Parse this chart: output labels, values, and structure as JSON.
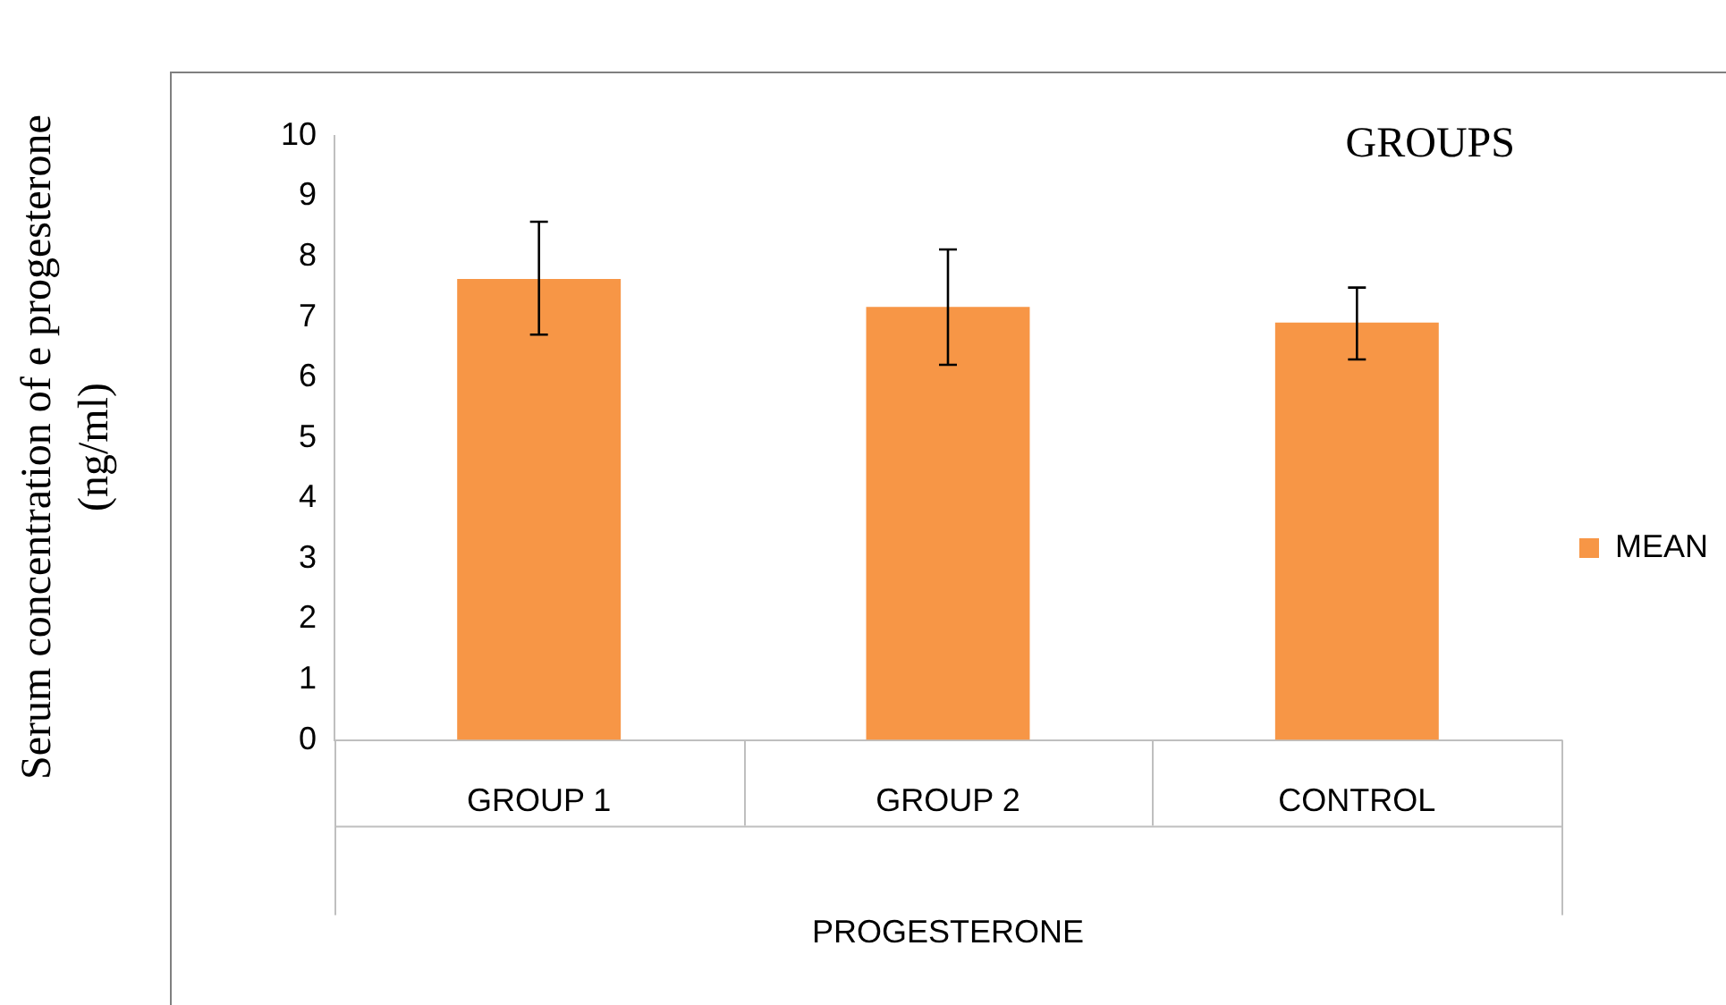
{
  "chart_data": {
    "type": "bar",
    "title": "GROUPS",
    "xlabel": "PROGESTERONE",
    "ylabel": "Serum concentration of e progesterone (ng/ml)",
    "categories": [
      "GROUP 1",
      "GROUP 2",
      "CONTROL"
    ],
    "series": [
      {
        "name": "MEAN",
        "color": "#f79646",
        "values": [
          7.63,
          7.17,
          6.91
        ],
        "errors": [
          [
            6.71,
            8.58
          ],
          [
            6.21,
            8.12
          ],
          [
            6.3,
            7.49
          ]
        ]
      }
    ],
    "ylim": [
      0,
      10
    ],
    "yticks": [
      0,
      1,
      2,
      3,
      4,
      5,
      6,
      7,
      8,
      9,
      10
    ],
    "grid": false,
    "legend": "right"
  }
}
